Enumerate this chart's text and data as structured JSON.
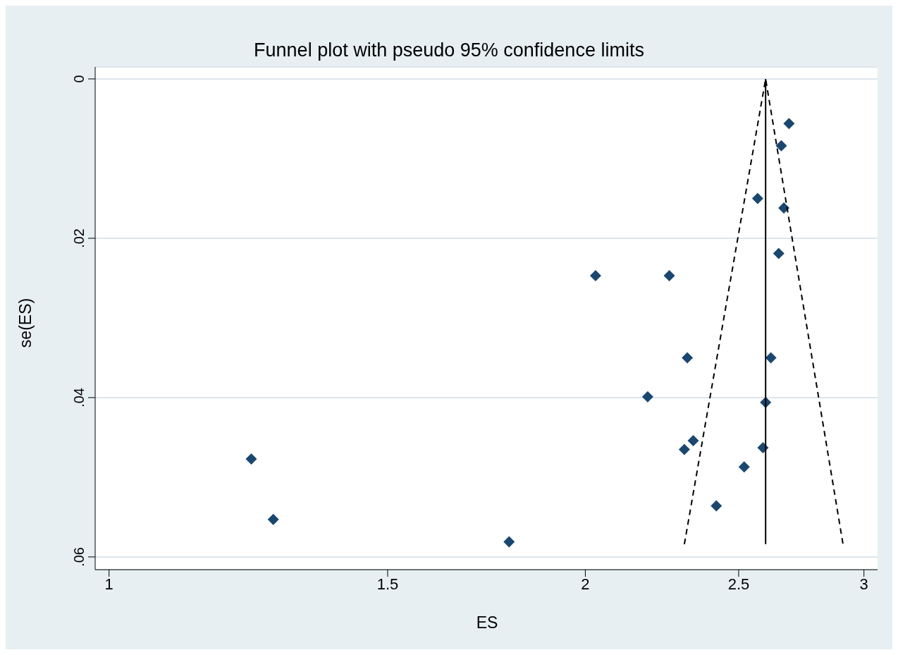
{
  "chart_data": {
    "type": "scatter",
    "title": "Funnel plot with pseudo 95% confidence limits",
    "xlabel": "ES",
    "ylabel": "se(ES)",
    "log": "x",
    "xlim": [
      0.98,
      3.06
    ],
    "xticks": [
      1,
      1.5,
      2,
      2.5,
      3
    ],
    "ylim": [
      0.0616,
      -0.0015
    ],
    "yticks": [
      0,
      {
        "value": 0.02,
        "label": ".02"
      },
      {
        "value": 0.04,
        "label": ".04"
      },
      {
        "value": 0.06,
        "label": ".06"
      }
    ],
    "grid": "y",
    "marker": "diamond",
    "series": [
      {
        "color": "#1a476f",
        "x": [
          2.69,
          2.66,
          2.57,
          2.67,
          2.65,
          2.03,
          2.26,
          2.32,
          2.62,
          2.19,
          2.6,
          2.34,
          2.31,
          2.59,
          2.52,
          1.23,
          1.27,
          2.42,
          1.79
        ],
        "values": [
          0.0056,
          0.0084,
          0.015,
          0.0162,
          0.0219,
          0.0247,
          0.0247,
          0.035,
          0.035,
          0.0399,
          0.0406,
          0.0454,
          0.0465,
          0.0463,
          0.0487,
          0.0477,
          0.0553,
          0.0536,
          0.0581
        ]
      },
      {
        "type": "line",
        "color": "#000000",
        "line_style": "dashed",
        "marker": "none",
        "x": [
          2.31,
          2.6,
          2.91
        ],
        "values": [
          0.0584,
          0,
          0.0584
        ]
      },
      {
        "type": "line",
        "color": "#000000",
        "line_style": "solid",
        "marker": "none",
        "x": [
          2.6,
          2.6
        ],
        "values": [
          0,
          0.0584
        ]
      }
    ]
  }
}
